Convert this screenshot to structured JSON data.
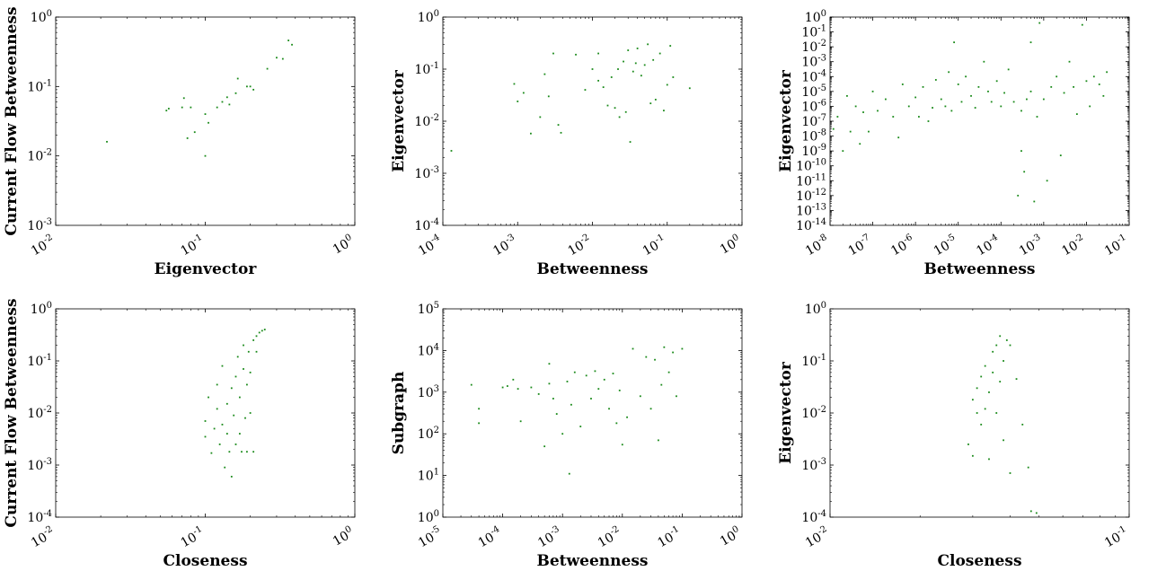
{
  "colors": {
    "marker": "#1a8a1a",
    "axes": "#000000",
    "background": "#ffffff"
  },
  "chart_data": [
    {
      "type": "scatter",
      "title": "",
      "xlabel": "Eigenvector",
      "ylabel": "Current Flow Betweenness",
      "xscale": "log",
      "yscale": "log",
      "xlim": [
        0.01,
        1
      ],
      "ylim": [
        0.001,
        1
      ],
      "x_tick_exponents": [
        -2,
        -1,
        0
      ],
      "y_tick_exponents": [
        -3,
        -2,
        -1,
        0
      ],
      "x_tick_rotated": true,
      "grid": false,
      "legend": "none",
      "points": [
        [
          0.022,
          0.016
        ],
        [
          0.055,
          0.045
        ],
        [
          0.057,
          0.048
        ],
        [
          0.07,
          0.05
        ],
        [
          0.072,
          0.068
        ],
        [
          0.076,
          0.018
        ],
        [
          0.08,
          0.05
        ],
        [
          0.085,
          0.022
        ],
        [
          0.1,
          0.04
        ],
        [
          0.1,
          0.01
        ],
        [
          0.105,
          0.03
        ],
        [
          0.12,
          0.05
        ],
        [
          0.13,
          0.06
        ],
        [
          0.14,
          0.07
        ],
        [
          0.145,
          0.055
        ],
        [
          0.16,
          0.08
        ],
        [
          0.165,
          0.13
        ],
        [
          0.19,
          0.1
        ],
        [
          0.2,
          0.1
        ],
        [
          0.21,
          0.09
        ],
        [
          0.26,
          0.18
        ],
        [
          0.3,
          0.26
        ],
        [
          0.33,
          0.25
        ],
        [
          0.36,
          0.46
        ],
        [
          0.38,
          0.4
        ]
      ]
    },
    {
      "type": "scatter",
      "title": "",
      "xlabel": "Betweenness",
      "ylabel": "Eigenvector",
      "xscale": "log",
      "yscale": "log",
      "xlim": [
        0.0001,
        1
      ],
      "ylim": [
        0.0001,
        1
      ],
      "x_tick_exponents": [
        -4,
        -3,
        -2,
        -1,
        0
      ],
      "y_tick_exponents": [
        -4,
        -3,
        -2,
        -1,
        0
      ],
      "x_tick_rotated": true,
      "grid": false,
      "legend": "none",
      "points": [
        [
          0.00013,
          0.0027
        ],
        [
          0.0009,
          0.052
        ],
        [
          0.001,
          0.024
        ],
        [
          0.0012,
          0.035
        ],
        [
          0.0015,
          0.0058
        ],
        [
          0.002,
          0.012
        ],
        [
          0.0023,
          0.08
        ],
        [
          0.0026,
          0.03
        ],
        [
          0.003,
          0.2
        ],
        [
          0.0035,
          0.0085
        ],
        [
          0.0038,
          0.006
        ],
        [
          0.006,
          0.19
        ],
        [
          0.008,
          0.04
        ],
        [
          0.01,
          0.1
        ],
        [
          0.012,
          0.06
        ],
        [
          0.012,
          0.2
        ],
        [
          0.014,
          0.045
        ],
        [
          0.016,
          0.02
        ],
        [
          0.018,
          0.07
        ],
        [
          0.02,
          0.018
        ],
        [
          0.022,
          0.1
        ],
        [
          0.023,
          0.012
        ],
        [
          0.026,
          0.14
        ],
        [
          0.028,
          0.015
        ],
        [
          0.03,
          0.23
        ],
        [
          0.032,
          0.004
        ],
        [
          0.035,
          0.09
        ],
        [
          0.038,
          0.13
        ],
        [
          0.04,
          0.25
        ],
        [
          0.045,
          0.075
        ],
        [
          0.05,
          0.12
        ],
        [
          0.055,
          0.3
        ],
        [
          0.06,
          0.022
        ],
        [
          0.065,
          0.15
        ],
        [
          0.07,
          0.026
        ],
        [
          0.08,
          0.2
        ],
        [
          0.09,
          0.016
        ],
        [
          0.1,
          0.05
        ],
        [
          0.11,
          0.28
        ],
        [
          0.12,
          0.07
        ],
        [
          0.2,
          0.043
        ]
      ]
    },
    {
      "type": "scatter",
      "title": "",
      "xlabel": "Betweenness",
      "ylabel": "Eigenvector",
      "xscale": "log",
      "yscale": "log",
      "xlim": [
        1e-08,
        0.1
      ],
      "ylim": [
        1e-14,
        1
      ],
      "x_tick_exponents": [
        -8,
        -7,
        -6,
        -5,
        -4,
        -3,
        -2,
        -1
      ],
      "y_tick_exponents": [
        -14,
        -13,
        -12,
        -11,
        -10,
        -9,
        -8,
        -7,
        -6,
        -5,
        -4,
        -3,
        -2,
        -1,
        0
      ],
      "x_tick_rotated": true,
      "grid": false,
      "legend": "none",
      "points": [
        [
          1.2e-08,
          3e-08
        ],
        [
          1.5e-08,
          2e-07
        ],
        [
          2e-08,
          1e-09
        ],
        [
          2.5e-08,
          5e-06
        ],
        [
          3e-08,
          2e-08
        ],
        [
          4e-08,
          1e-06
        ],
        [
          5e-08,
          3e-09
        ],
        [
          6e-08,
          4e-07
        ],
        [
          8e-08,
          2e-08
        ],
        [
          1e-07,
          1e-05
        ],
        [
          1.3e-07,
          5e-07
        ],
        [
          2e-07,
          3e-06
        ],
        [
          3e-07,
          2e-07
        ],
        [
          4e-07,
          8e-09
        ],
        [
          5e-07,
          3e-05
        ],
        [
          7e-07,
          1e-06
        ],
        [
          1e-06,
          4e-06
        ],
        [
          1.2e-06,
          2e-07
        ],
        [
          1.5e-06,
          2e-05
        ],
        [
          2e-06,
          1e-07
        ],
        [
          2.5e-06,
          8e-07
        ],
        [
          3e-06,
          6e-05
        ],
        [
          4e-06,
          3e-06
        ],
        [
          5e-06,
          1e-06
        ],
        [
          6e-06,
          0.0002
        ],
        [
          7e-06,
          5e-07
        ],
        [
          8e-06,
          0.02
        ],
        [
          1e-05,
          3e-05
        ],
        [
          1.2e-05,
          2e-06
        ],
        [
          1.5e-05,
          0.0001
        ],
        [
          2e-05,
          5e-06
        ],
        [
          2.5e-05,
          8e-07
        ],
        [
          3e-05,
          2e-05
        ],
        [
          4e-05,
          0.001
        ],
        [
          5e-05,
          1e-05
        ],
        [
          6e-05,
          2e-06
        ],
        [
          8e-05,
          5e-05
        ],
        [
          0.0001,
          1e-06
        ],
        [
          0.00012,
          8e-06
        ],
        [
          0.00015,
          0.0003
        ],
        [
          0.0002,
          2e-06
        ],
        [
          0.00025,
          1e-12
        ],
        [
          0.0003,
          5e-07
        ],
        [
          0.0003,
          1e-09
        ],
        [
          0.00035,
          4e-11
        ],
        [
          0.0004,
          3e-06
        ],
        [
          0.0005,
          0.02
        ],
        [
          0.0005,
          1e-05
        ],
        [
          0.0006,
          4e-13
        ],
        [
          0.0007,
          2e-07
        ],
        [
          0.0008,
          0.4
        ],
        [
          0.001,
          3e-06
        ],
        [
          0.0012,
          1e-11
        ],
        [
          0.0015,
          2e-05
        ],
        [
          0.002,
          0.0001
        ],
        [
          0.0025,
          5e-10
        ],
        [
          0.003,
          8e-06
        ],
        [
          0.004,
          0.001
        ],
        [
          0.005,
          2e-05
        ],
        [
          0.006,
          3e-07
        ],
        [
          0.008,
          0.3
        ],
        [
          0.01,
          5e-05
        ],
        [
          0.012,
          1e-06
        ],
        [
          0.015,
          0.0001
        ],
        [
          0.02,
          3e-05
        ],
        [
          0.025,
          5e-06
        ],
        [
          0.03,
          0.0002
        ]
      ]
    },
    {
      "type": "scatter",
      "title": "",
      "xlabel": "Closeness",
      "ylabel": "Current Flow Betweenness",
      "xscale": "log",
      "yscale": "log",
      "xlim": [
        0.01,
        1
      ],
      "ylim": [
        0.0001,
        1
      ],
      "x_tick_exponents": [
        -2,
        -1,
        0
      ],
      "y_tick_exponents": [
        -4,
        -3,
        -2,
        -1,
        0
      ],
      "x_tick_rotated": true,
      "grid": false,
      "legend": "none",
      "points": [
        [
          0.1,
          0.0035
        ],
        [
          0.1,
          0.007
        ],
        [
          0.105,
          0.02
        ],
        [
          0.11,
          0.0017
        ],
        [
          0.115,
          0.005
        ],
        [
          0.12,
          0.012
        ],
        [
          0.12,
          0.035
        ],
        [
          0.125,
          0.0025
        ],
        [
          0.13,
          0.006
        ],
        [
          0.13,
          0.08
        ],
        [
          0.135,
          0.0009
        ],
        [
          0.14,
          0.004
        ],
        [
          0.14,
          0.015
        ],
        [
          0.145,
          0.0018
        ],
        [
          0.15,
          0.03
        ],
        [
          0.15,
          0.0006
        ],
        [
          0.155,
          0.009
        ],
        [
          0.16,
          0.05
        ],
        [
          0.16,
          0.0025
        ],
        [
          0.165,
          0.12
        ],
        [
          0.17,
          0.004
        ],
        [
          0.17,
          0.02
        ],
        [
          0.175,
          0.0018
        ],
        [
          0.18,
          0.07
        ],
        [
          0.18,
          0.2
        ],
        [
          0.185,
          0.008
        ],
        [
          0.19,
          0.035
        ],
        [
          0.19,
          0.0018
        ],
        [
          0.195,
          0.15
        ],
        [
          0.2,
          0.06
        ],
        [
          0.2,
          0.01
        ],
        [
          0.21,
          0.25
        ],
        [
          0.21,
          0.0018
        ],
        [
          0.22,
          0.15
        ],
        [
          0.22,
          0.3
        ],
        [
          0.23,
          0.35
        ],
        [
          0.24,
          0.38
        ],
        [
          0.25,
          0.4
        ]
      ]
    },
    {
      "type": "scatter",
      "title": "",
      "xlabel": "Betweenness",
      "ylabel": "Subgraph",
      "xscale": "log",
      "yscale": "log",
      "xlim": [
        1e-05,
        1
      ],
      "ylim": [
        1,
        100000
      ],
      "x_tick_exponents": [
        -5,
        -4,
        -3,
        -2,
        -1,
        0
      ],
      "y_tick_exponents": [
        0,
        1,
        2,
        3,
        4,
        5
      ],
      "x_tick_rotated": true,
      "grid": false,
      "legend": "none",
      "points": [
        [
          3e-05,
          1500
        ],
        [
          4e-05,
          400
        ],
        [
          4e-05,
          180
        ],
        [
          0.0001,
          1300
        ],
        [
          0.00012,
          1400
        ],
        [
          0.00015,
          2000
        ],
        [
          0.00018,
          1200
        ],
        [
          0.0002,
          200
        ],
        [
          0.0003,
          1300
        ],
        [
          0.0004,
          900
        ],
        [
          0.0005,
          50
        ],
        [
          0.0006,
          4800
        ],
        [
          0.0006,
          1600
        ],
        [
          0.0007,
          700
        ],
        [
          0.0008,
          300
        ],
        [
          0.001,
          100
        ],
        [
          0.0012,
          1800
        ],
        [
          0.0013,
          11
        ],
        [
          0.0014,
          500
        ],
        [
          0.0016,
          3000
        ],
        [
          0.002,
          150
        ],
        [
          0.0025,
          2500
        ],
        [
          0.003,
          700
        ],
        [
          0.0035,
          3200
        ],
        [
          0.004,
          1200
        ],
        [
          0.005,
          2000
        ],
        [
          0.006,
          400
        ],
        [
          0.007,
          2800
        ],
        [
          0.008,
          180
        ],
        [
          0.009,
          1100
        ],
        [
          0.01,
          55
        ],
        [
          0.012,
          250
        ],
        [
          0.015,
          11000
        ],
        [
          0.02,
          800
        ],
        [
          0.025,
          7000
        ],
        [
          0.03,
          400
        ],
        [
          0.035,
          6000
        ],
        [
          0.04,
          70
        ],
        [
          0.045,
          1500
        ],
        [
          0.05,
          12000
        ],
        [
          0.06,
          3000
        ],
        [
          0.07,
          9000
        ],
        [
          0.08,
          800
        ],
        [
          0.1,
          11000
        ]
      ]
    },
    {
      "type": "scatter",
      "title": "",
      "xlabel": "Closeness",
      "ylabel": "Eigenvector",
      "xscale": "log",
      "yscale": "log",
      "xlim": [
        0.01,
        0.1
      ],
      "ylim": [
        0.0001,
        1
      ],
      "x_tick_exponents": [
        -2,
        -1
      ],
      "y_tick_exponents": [
        -4,
        -3,
        -2,
        -1,
        0
      ],
      "x_tick_rotated": true,
      "grid": false,
      "legend": "none",
      "points": [
        [
          0.029,
          0.0025
        ],
        [
          0.03,
          0.018
        ],
        [
          0.03,
          0.0015
        ],
        [
          0.031,
          0.01
        ],
        [
          0.031,
          0.03
        ],
        [
          0.032,
          0.006
        ],
        [
          0.032,
          0.05
        ],
        [
          0.033,
          0.012
        ],
        [
          0.033,
          0.08
        ],
        [
          0.034,
          0.0013
        ],
        [
          0.034,
          0.025
        ],
        [
          0.035,
          0.15
        ],
        [
          0.035,
          0.06
        ],
        [
          0.036,
          0.2
        ],
        [
          0.036,
          0.01
        ],
        [
          0.037,
          0.04
        ],
        [
          0.037,
          0.3
        ],
        [
          0.038,
          0.1
        ],
        [
          0.038,
          0.003
        ],
        [
          0.039,
          0.25
        ],
        [
          0.04,
          0.0007
        ],
        [
          0.04,
          0.2
        ],
        [
          0.042,
          0.045
        ],
        [
          0.044,
          0.006
        ],
        [
          0.046,
          0.0009
        ],
        [
          0.047,
          0.00013
        ],
        [
          0.049,
          0.00012
        ]
      ]
    }
  ]
}
